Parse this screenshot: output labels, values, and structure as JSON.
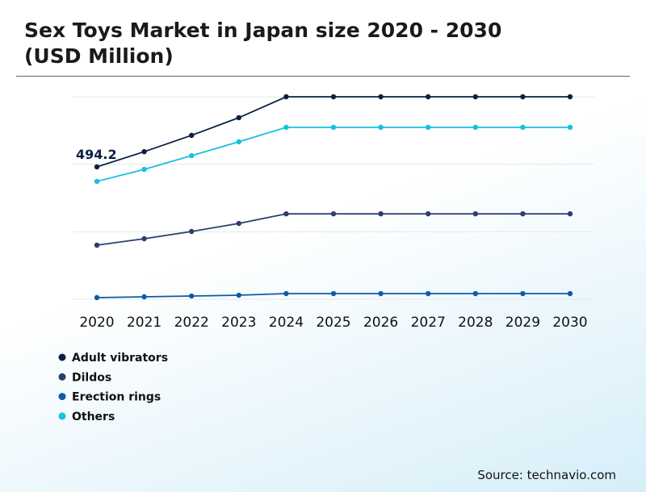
{
  "chart_data": {
    "type": "line",
    "title": "Sex Toys Market in Japan size 2020 - 2030 (USD Million)",
    "categories": [
      "2020",
      "2021",
      "2022",
      "2023",
      "2024",
      "2025",
      "2026",
      "2027",
      "2028",
      "2029",
      "2030"
    ],
    "series": [
      {
        "name": "Adult vibrators",
        "color": "#0b1f45",
        "values": [
          494.2,
          551,
          612,
          678,
          756,
          756,
          756,
          756,
          756,
          756,
          756
        ]
      },
      {
        "name": "Dildos",
        "color": "#2a3f6e",
        "values": [
          202,
          226,
          253,
          283,
          319,
          319,
          319,
          319,
          319,
          319,
          319
        ]
      },
      {
        "name": "Erection rings",
        "color": "#0e5aa7",
        "values": [
          6,
          9,
          12,
          15,
          21,
          21,
          21,
          21,
          21,
          21,
          21
        ]
      },
      {
        "name": "Others",
        "color": "#17c1db",
        "values": [
          440,
          485,
          536,
          588,
          642,
          642,
          642,
          642,
          642,
          642,
          642
        ]
      }
    ],
    "labeled_point": {
      "series": 0,
      "index": 0
    },
    "ylim": [
      0,
      756
    ],
    "ygrid": [
      0,
      252,
      504,
      756
    ],
    "grid": true,
    "source": "Source: technavio.com"
  }
}
